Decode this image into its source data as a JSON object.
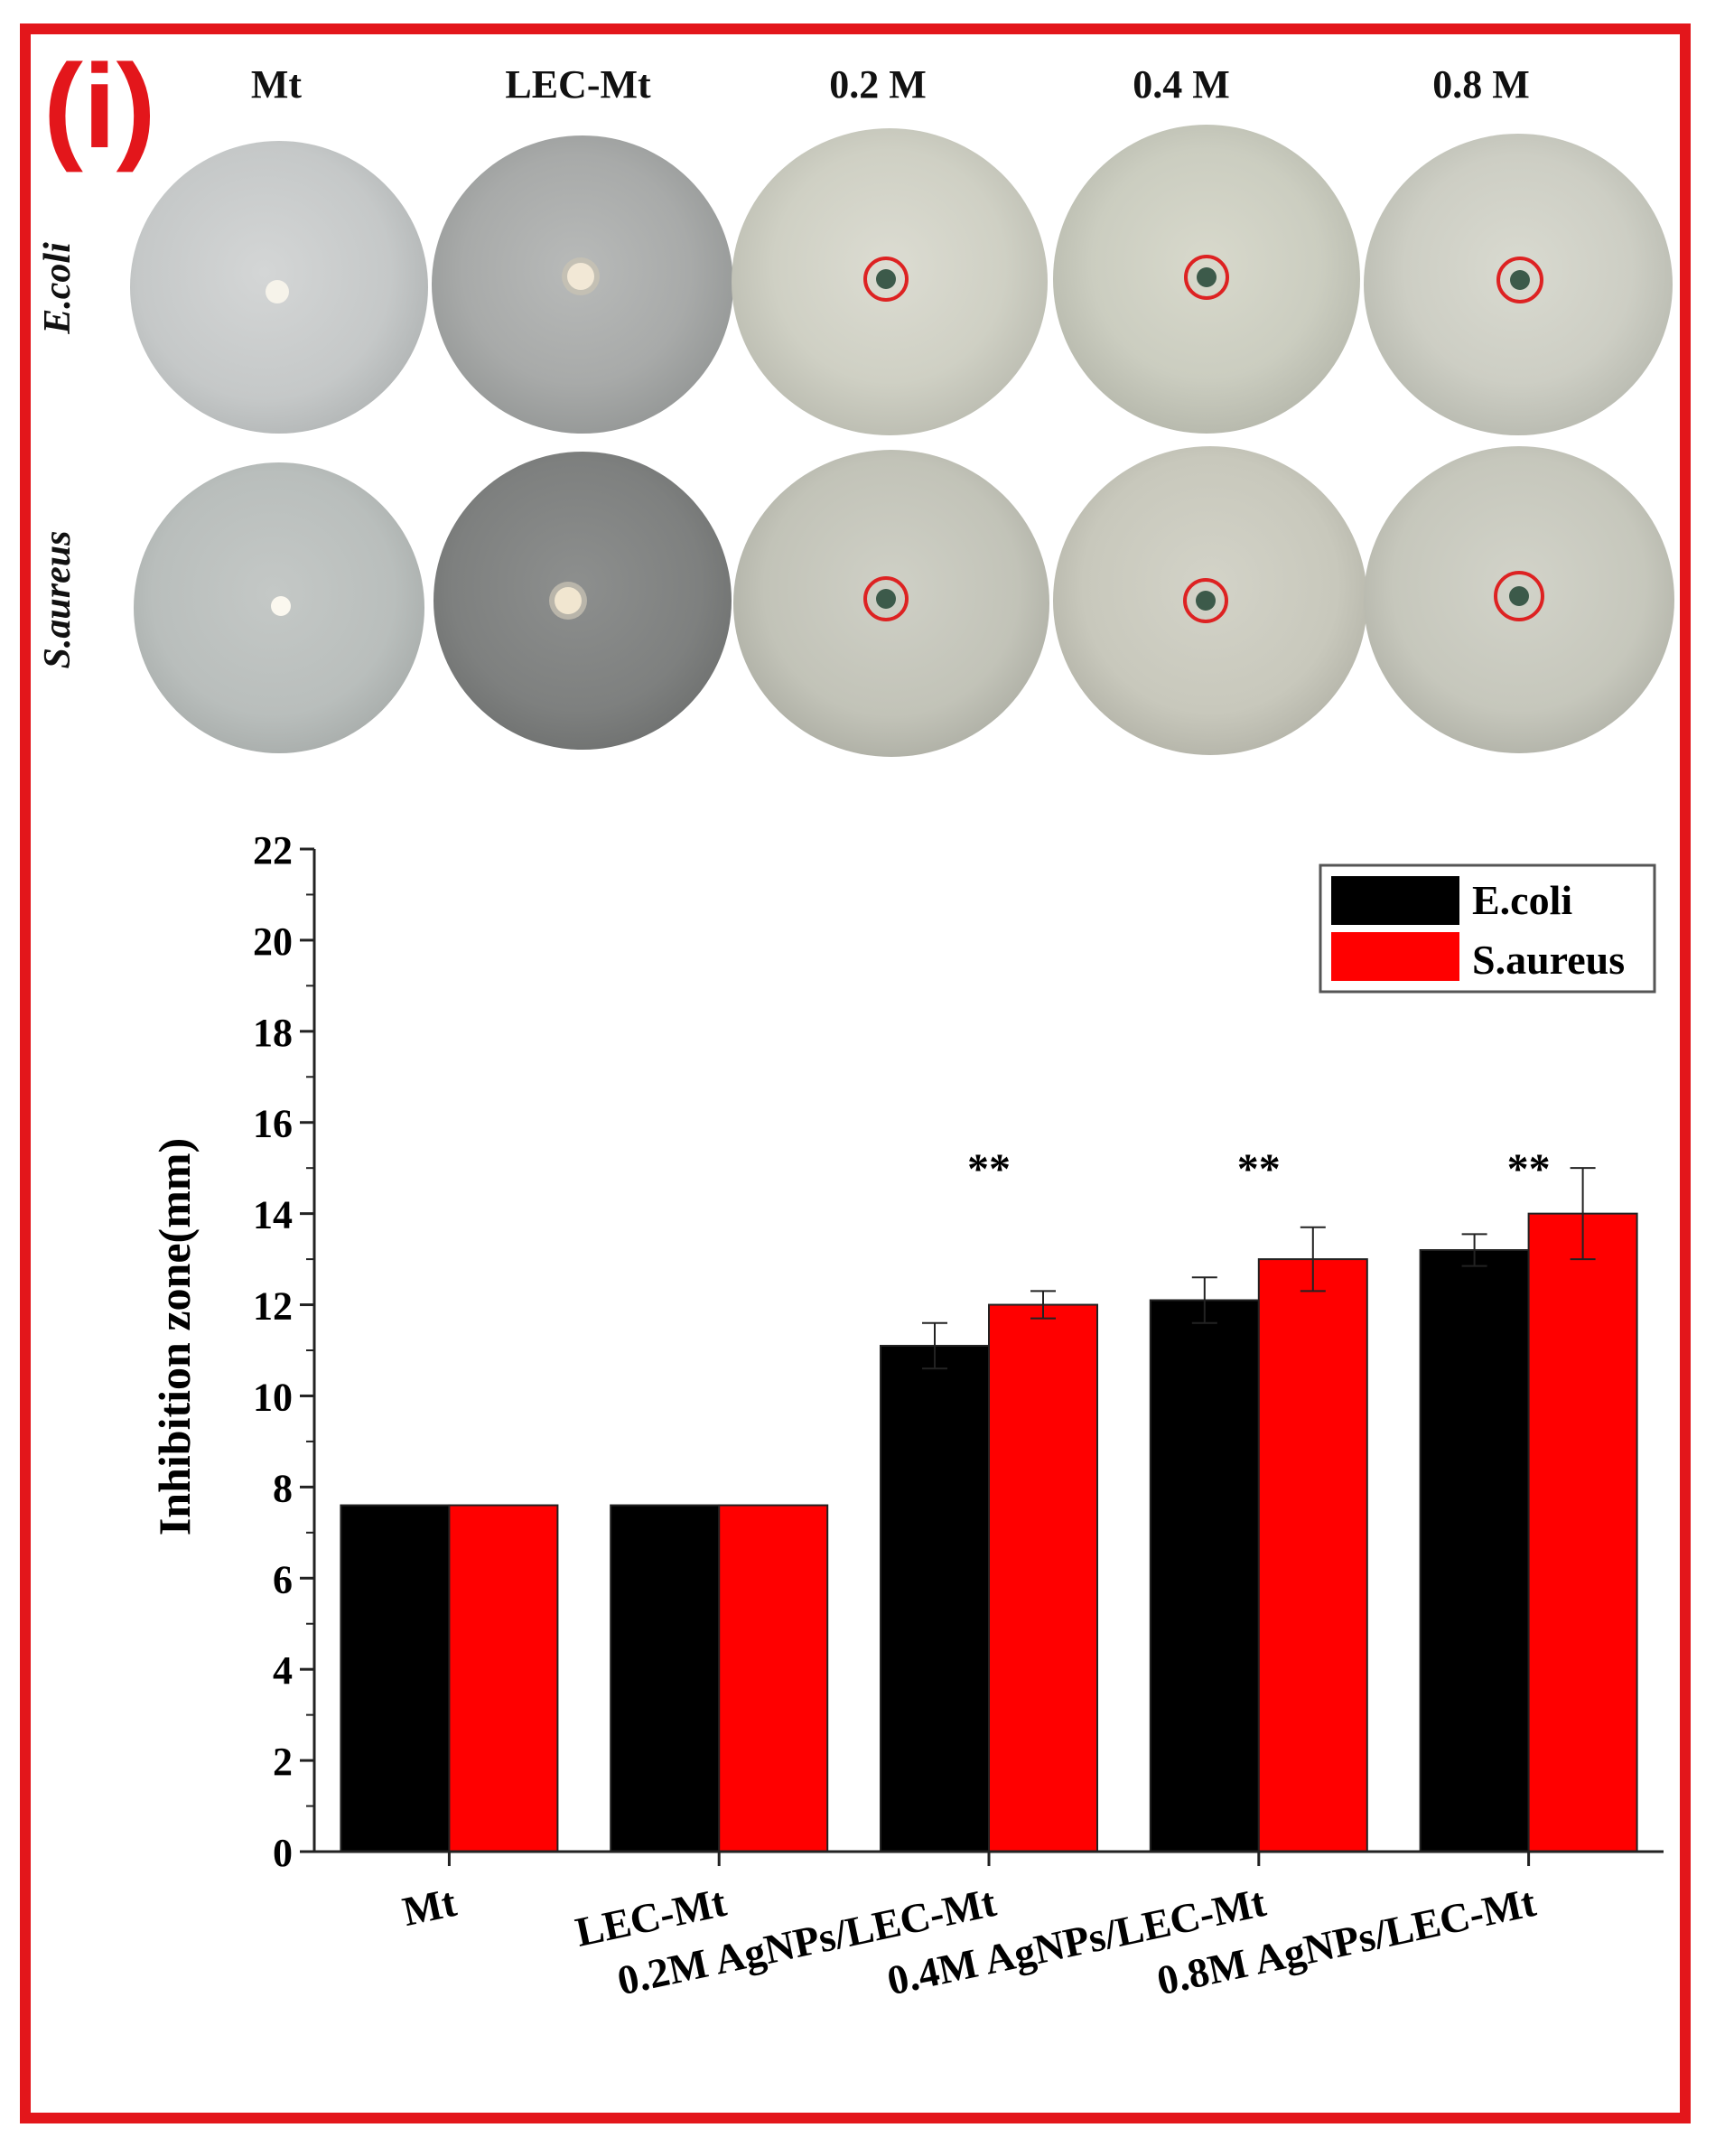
{
  "panel_label": "(i)",
  "photo_grid": {
    "columns": [
      "Mt",
      "LEC-Mt",
      "0.2 M",
      "0.4 M",
      "0.8 M"
    ],
    "rows": [
      "E.coli",
      "S.aureus"
    ]
  },
  "colors": {
    "ecoli": "#000000",
    "saureus": "#ff0000",
    "frame": "#e3161b"
  },
  "chart_data": {
    "type": "bar",
    "categories": [
      "Mt",
      "LEC-Mt",
      "0.2M AgNPs/LEC-Mt",
      "0.4M AgNPs/LEC-Mt",
      "0.8M AgNPs/LEC-Mt"
    ],
    "series": [
      {
        "name": "E.coli",
        "values": [
          7.6,
          7.6,
          11.1,
          12.1,
          13.2
        ],
        "errors": [
          0,
          0,
          0.5,
          0.5,
          0.35
        ]
      },
      {
        "name": "S.aureus",
        "values": [
          7.6,
          7.6,
          12.0,
          13.0,
          14.0
        ],
        "errors": [
          0,
          0,
          0.3,
          0.7,
          1.0
        ]
      }
    ],
    "significance": [
      "",
      "",
      "**",
      "**",
      "**"
    ],
    "title": "",
    "xlabel": "",
    "ylabel": "Inhibition zone(mm)",
    "ylim": [
      0,
      22
    ],
    "yticks": [
      0,
      2,
      4,
      6,
      8,
      10,
      12,
      14,
      16,
      18,
      20,
      22
    ],
    "legend_position": "top-right"
  }
}
